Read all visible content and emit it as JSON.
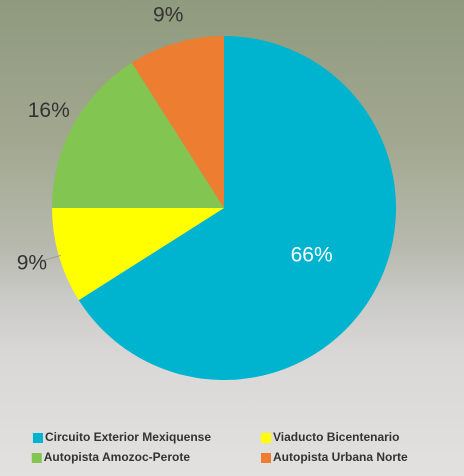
{
  "chart_data": {
    "type": "pie",
    "categories": [
      "Circuito Exterior Mexiquense",
      "Viaducto Bicentenario",
      "Autopista Amozoc-Perote",
      "Autopista Urbana Norte"
    ],
    "values": [
      66,
      9,
      16,
      9
    ],
    "value_labels": [
      "66%",
      "9%",
      "16%",
      "9%"
    ],
    "colors": [
      "#00b3cf",
      "#ffff00",
      "#82c550",
      "#ed7d31"
    ]
  }
}
